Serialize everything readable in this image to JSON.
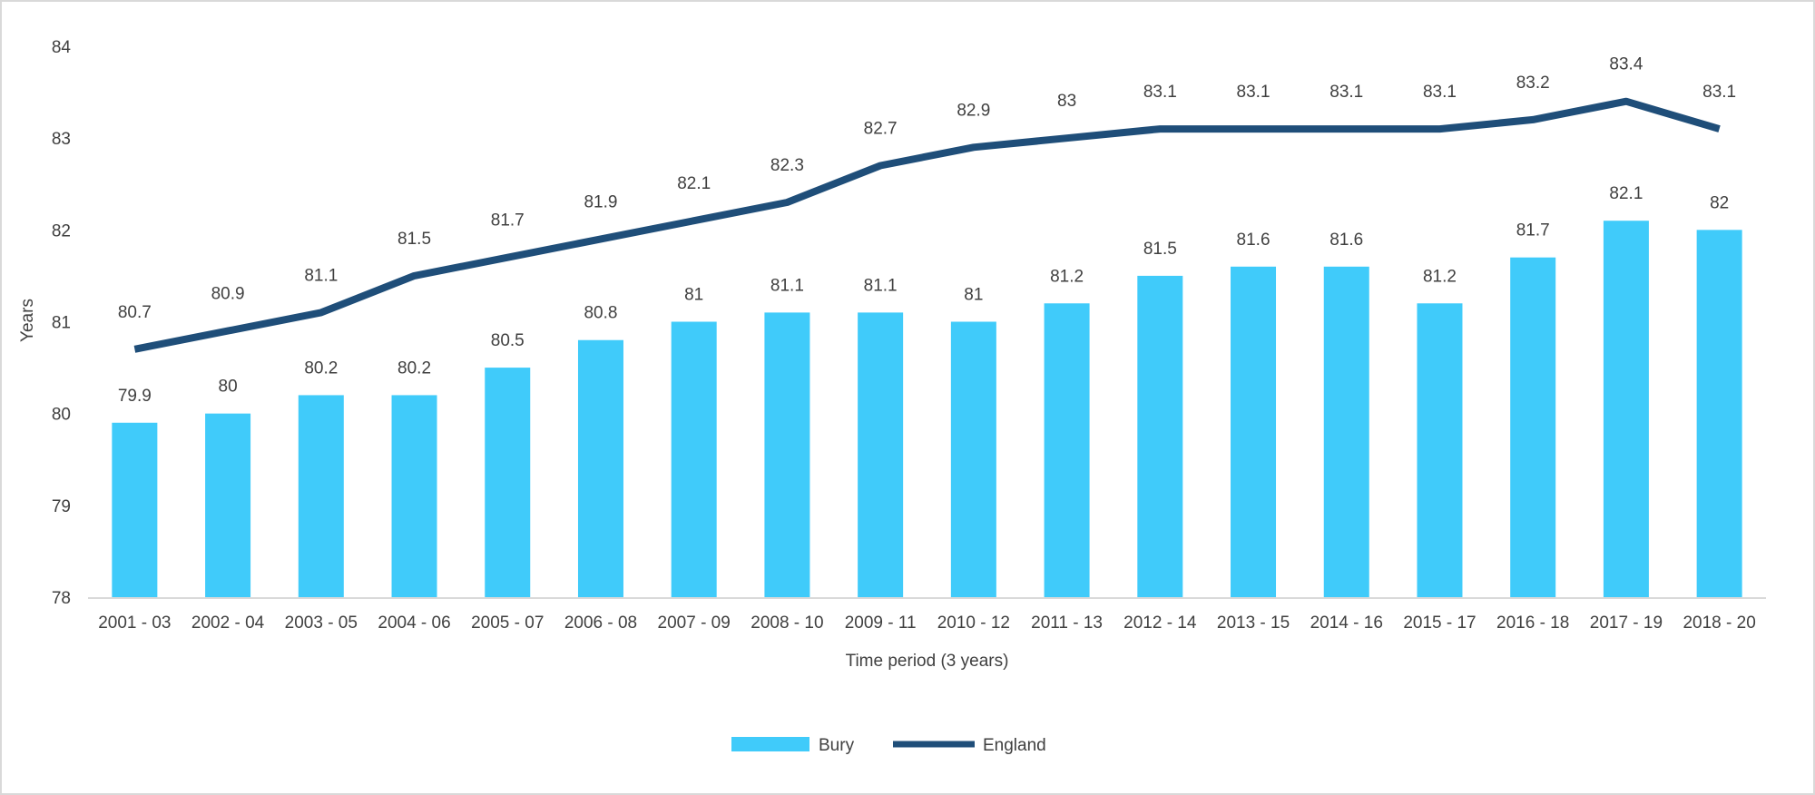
{
  "chart_data": {
    "type": "bar",
    "categories": [
      "2001 - 03",
      "2002 - 04",
      "2003 - 05",
      "2004 - 06",
      "2005 - 07",
      "2006 - 08",
      "2007 - 09",
      "2008 - 10",
      "2009 - 11",
      "2010 - 12",
      "2011 - 13",
      "2012 - 14",
      "2013 - 15",
      "2014 - 16",
      "2015 - 17",
      "2016 - 18",
      "2017 - 19",
      "2018 - 20"
    ],
    "series": [
      {
        "name": "Bury",
        "type": "bar",
        "color": "#40cbfa",
        "values": [
          79.9,
          80,
          80.2,
          80.2,
          80.5,
          80.8,
          81,
          81.1,
          81.1,
          81,
          81.2,
          81.5,
          81.6,
          81.6,
          81.2,
          81.7,
          82.1,
          82
        ]
      },
      {
        "name": "England",
        "type": "line",
        "color": "#1f4e79",
        "values": [
          80.7,
          80.9,
          81.1,
          81.5,
          81.7,
          81.9,
          82.1,
          82.3,
          82.7,
          82.9,
          83,
          83.1,
          83.1,
          83.1,
          83.1,
          83.2,
          83.4,
          83.1
        ]
      }
    ],
    "title": "",
    "xlabel": "Time period (3 years)",
    "ylabel": "Years",
    "ylim": [
      78,
      84
    ],
    "yticks": [
      78,
      79,
      80,
      81,
      82,
      83,
      84
    ],
    "grid": false,
    "legend_position": "bottom-center"
  }
}
